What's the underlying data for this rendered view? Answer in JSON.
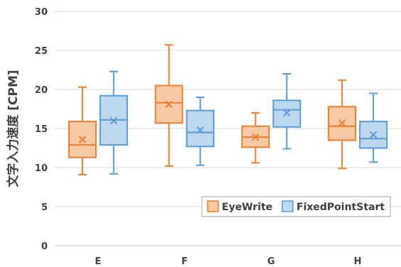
{
  "chart_data": {
    "type": "box",
    "ylabel": "文字入力速度 [CPM]",
    "ylim": [
      0,
      30
    ],
    "yticks": [
      0,
      5,
      10,
      15,
      20,
      25,
      30
    ],
    "categories": [
      "E",
      "F",
      "G",
      "H"
    ],
    "grid": "horizontal",
    "legend_position": "bottom-right",
    "series": [
      {
        "name": "EyeWrite",
        "fill": "#f9c9a3",
        "stroke": "#ed7d31",
        "boxes": [
          {
            "min": 9.1,
            "q1": 11.3,
            "median": 12.9,
            "q3": 15.9,
            "max": 20.3,
            "mean": 13.6
          },
          {
            "min": 10.2,
            "q1": 15.7,
            "median": 18.3,
            "q3": 20.5,
            "max": 25.7,
            "mean": 18.1
          },
          {
            "min": 10.6,
            "q1": 12.6,
            "median": 13.9,
            "q3": 15.3,
            "max": 17.0,
            "mean": 13.9
          },
          {
            "min": 9.9,
            "q1": 13.5,
            "median": 15.3,
            "q3": 17.8,
            "max": 21.2,
            "mean": 15.7
          }
        ]
      },
      {
        "name": "FixedPointStart",
        "fill": "#bdd7ee",
        "stroke": "#5b9bd5",
        "boxes": [
          {
            "min": 9.2,
            "q1": 12.9,
            "median": 16.1,
            "q3": 19.2,
            "max": 22.3,
            "mean": 16.0
          },
          {
            "min": 10.3,
            "q1": 12.7,
            "median": 14.5,
            "q3": 17.3,
            "max": 19.0,
            "mean": 14.8
          },
          {
            "min": 12.4,
            "q1": 15.2,
            "median": 17.4,
            "q3": 18.6,
            "max": 22.0,
            "mean": 17.0
          },
          {
            "min": 10.7,
            "q1": 12.5,
            "median": 13.7,
            "q3": 15.9,
            "max": 19.5,
            "mean": 14.2
          }
        ]
      }
    ]
  }
}
